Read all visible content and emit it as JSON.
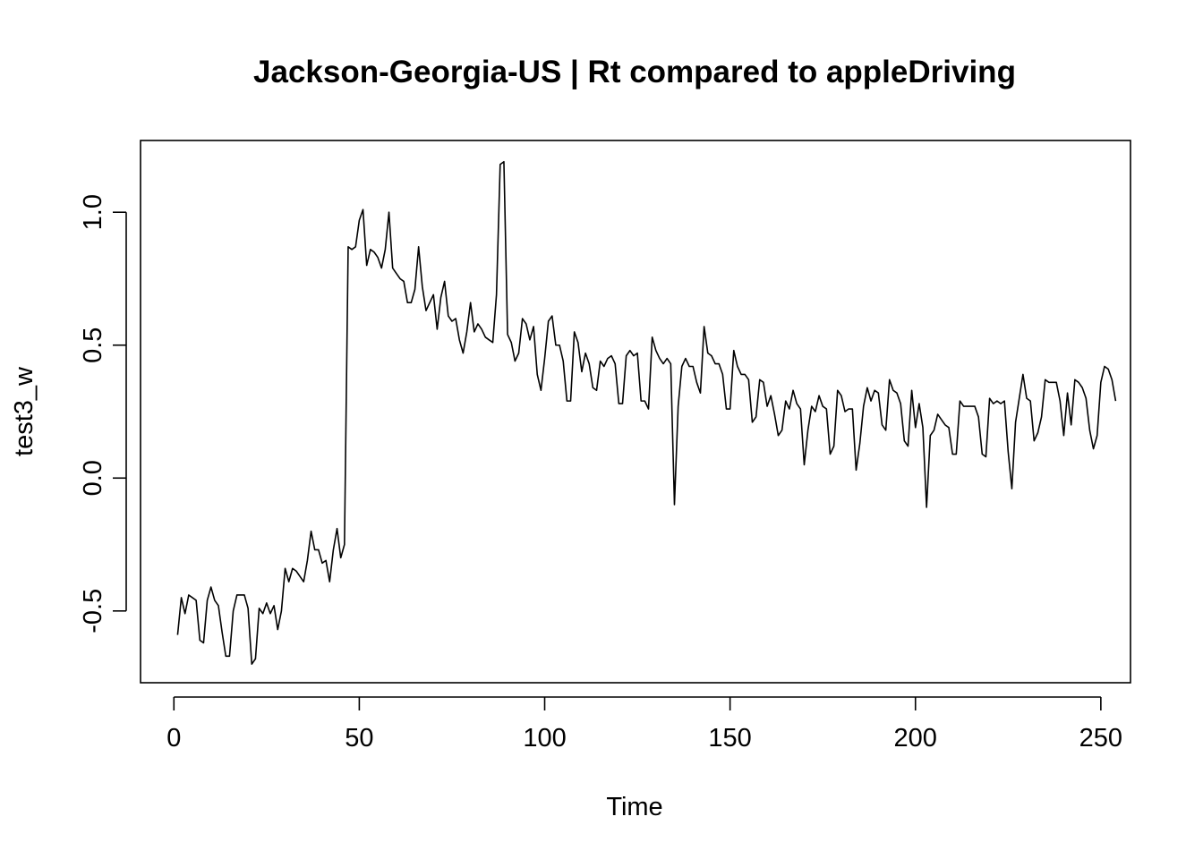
{
  "chart_data": {
    "type": "line",
    "title": "Jackson-Georgia-US | Rt compared to appleDriving",
    "xlabel": "Time",
    "ylabel": "test3_w",
    "xlim": [
      -9,
      258
    ],
    "ylim": [
      -0.77,
      1.27
    ],
    "xticks": [
      0,
      50,
      100,
      150,
      200,
      250
    ],
    "yticks": [
      -0.5,
      0.0,
      0.5,
      1.0
    ],
    "grid": false,
    "legend": "none",
    "series": [
      {
        "x_start": 1,
        "values": [
          -0.59,
          -0.45,
          -0.51,
          -0.44,
          -0.45,
          -0.46,
          -0.61,
          -0.62,
          -0.46,
          -0.41,
          -0.46,
          -0.48,
          -0.58,
          -0.67,
          -0.67,
          -0.5,
          -0.44,
          -0.44,
          -0.44,
          -0.49,
          -0.7,
          -0.68,
          -0.49,
          -0.51,
          -0.47,
          -0.51,
          -0.48,
          -0.57,
          -0.5,
          -0.34,
          -0.39,
          -0.34,
          -0.35,
          -0.37,
          -0.39,
          -0.31,
          -0.2,
          -0.27,
          -0.27,
          -0.32,
          -0.31,
          -0.39,
          -0.27,
          -0.19,
          -0.3,
          -0.25,
          0.87,
          0.86,
          0.87,
          0.97,
          1.01,
          0.8,
          0.86,
          0.85,
          0.83,
          0.79,
          0.86,
          1.0,
          0.79,
          0.77,
          0.75,
          0.74,
          0.66,
          0.66,
          0.71,
          0.87,
          0.72,
          0.63,
          0.66,
          0.69,
          0.56,
          0.68,
          0.74,
          0.61,
          0.59,
          0.6,
          0.52,
          0.47,
          0.55,
          0.66,
          0.55,
          0.58,
          0.56,
          0.53,
          0.52,
          0.51,
          0.69,
          1.18,
          1.19,
          0.54,
          0.51,
          0.44,
          0.47,
          0.6,
          0.58,
          0.52,
          0.57,
          0.39,
          0.33,
          0.45,
          0.59,
          0.61,
          0.5,
          0.5,
          0.44,
          0.29,
          0.29,
          0.55,
          0.51,
          0.4,
          0.47,
          0.43,
          0.34,
          0.33,
          0.44,
          0.42,
          0.45,
          0.46,
          0.43,
          0.28,
          0.28,
          0.46,
          0.48,
          0.46,
          0.47,
          0.29,
          0.29,
          0.26,
          0.53,
          0.48,
          0.45,
          0.43,
          0.45,
          0.43,
          -0.1,
          0.27,
          0.42,
          0.45,
          0.42,
          0.42,
          0.36,
          0.32,
          0.57,
          0.47,
          0.46,
          0.43,
          0.43,
          0.39,
          0.26,
          0.26,
          0.48,
          0.42,
          0.39,
          0.39,
          0.37,
          0.21,
          0.23,
          0.37,
          0.36,
          0.27,
          0.31,
          0.24,
          0.16,
          0.18,
          0.29,
          0.26,
          0.33,
          0.28,
          0.26,
          0.05,
          0.18,
          0.27,
          0.25,
          0.31,
          0.27,
          0.26,
          0.09,
          0.12,
          0.33,
          0.31,
          0.25,
          0.26,
          0.26,
          0.03,
          0.13,
          0.27,
          0.34,
          0.29,
          0.33,
          0.32,
          0.2,
          0.18,
          0.37,
          0.33,
          0.32,
          0.28,
          0.14,
          0.12,
          0.33,
          0.19,
          0.28,
          0.19,
          -0.11,
          0.16,
          0.18,
          0.24,
          0.22,
          0.2,
          0.19,
          0.09,
          0.09,
          0.29,
          0.27,
          0.27,
          0.27,
          0.27,
          0.23,
          0.09,
          0.08,
          0.3,
          0.28,
          0.29,
          0.28,
          0.29,
          0.1,
          -0.04,
          0.21,
          0.3,
          0.39,
          0.3,
          0.29,
          0.14,
          0.17,
          0.23,
          0.37,
          0.36,
          0.36,
          0.36,
          0.29,
          0.16,
          0.32,
          0.2,
          0.37,
          0.36,
          0.34,
          0.3,
          0.18,
          0.11,
          0.16,
          0.36,
          0.42,
          0.41,
          0.37,
          0.29
        ]
      }
    ]
  }
}
